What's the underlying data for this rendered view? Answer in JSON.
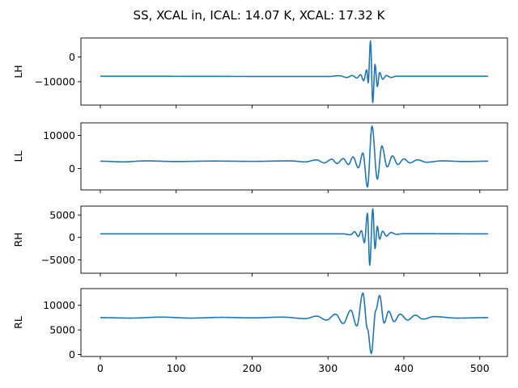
{
  "chart_data": {
    "type": "line",
    "title": "SS, XCAL in, ICAL: 14.07 K, XCAL: 17.32 K",
    "x_range": [
      0,
      511
    ],
    "xlim": [
      -25.5,
      536.5
    ],
    "xticks": [
      0,
      100,
      200,
      300,
      400,
      500
    ],
    "color": "#1f77b4",
    "sharex": true,
    "grid": false,
    "panels": [
      {
        "name": "LH",
        "ylabel": "LH",
        "ylim": [
          -19500,
          7700
        ],
        "yticks": [
          0,
          -10000
        ],
        "baseline": -7800,
        "features": [
          {
            "x": 300,
            "y": -7900
          },
          {
            "x": 315,
            "y": -7600
          },
          {
            "x": 325,
            "y": -8300
          },
          {
            "x": 332,
            "y": -7500
          },
          {
            "x": 338,
            "y": -8500
          },
          {
            "x": 343,
            "y": -7200
          },
          {
            "x": 347,
            "y": -9600
          },
          {
            "x": 351,
            "y": -5200
          },
          {
            "x": 353,
            "y": -10500
          },
          {
            "x": 356,
            "y": 6500
          },
          {
            "x": 359,
            "y": -18500
          },
          {
            "x": 362,
            "y": -3000
          },
          {
            "x": 365,
            "y": -12000
          },
          {
            "x": 368,
            "y": -6300
          },
          {
            "x": 372,
            "y": -9000
          },
          {
            "x": 377,
            "y": -7500
          },
          {
            "x": 383,
            "y": -8300
          },
          {
            "x": 390,
            "y": -7800
          },
          {
            "x": 511,
            "y": -7800
          }
        ]
      },
      {
        "name": "LL",
        "ylabel": "LL",
        "ylim": [
          -6500,
          13800
        ],
        "yticks": [
          0,
          10000
        ],
        "baseline": 2200,
        "features": [
          {
            "x": 0,
            "y": 2200
          },
          {
            "x": 30,
            "y": 2000
          },
          {
            "x": 60,
            "y": 2300
          },
          {
            "x": 100,
            "y": 2100
          },
          {
            "x": 150,
            "y": 2250
          },
          {
            "x": 200,
            "y": 2150
          },
          {
            "x": 250,
            "y": 2300
          },
          {
            "x": 270,
            "y": 2000
          },
          {
            "x": 285,
            "y": 2600
          },
          {
            "x": 295,
            "y": 1700
          },
          {
            "x": 305,
            "y": 2800
          },
          {
            "x": 312,
            "y": 1500
          },
          {
            "x": 320,
            "y": 3000
          },
          {
            "x": 327,
            "y": 1200
          },
          {
            "x": 333,
            "y": 3500
          },
          {
            "x": 340,
            "y": 200
          },
          {
            "x": 346,
            "y": 4700
          },
          {
            "x": 352,
            "y": -5600
          },
          {
            "x": 358,
            "y": 12800
          },
          {
            "x": 365,
            "y": -3200
          },
          {
            "x": 371,
            "y": 6800
          },
          {
            "x": 378,
            "y": 500
          },
          {
            "x": 385,
            "y": 3800
          },
          {
            "x": 392,
            "y": 1200
          },
          {
            "x": 400,
            "y": 2900
          },
          {
            "x": 408,
            "y": 1700
          },
          {
            "x": 418,
            "y": 2600
          },
          {
            "x": 430,
            "y": 1900
          },
          {
            "x": 450,
            "y": 2300
          },
          {
            "x": 480,
            "y": 2100
          },
          {
            "x": 511,
            "y": 2200
          }
        ]
      },
      {
        "name": "RH",
        "ylabel": "RH",
        "ylim": [
          -8000,
          7000
        ],
        "yticks": [
          5000,
          0,
          -5000
        ],
        "baseline": 800,
        "features": [
          {
            "x": 0,
            "y": 800
          },
          {
            "x": 320,
            "y": 800
          },
          {
            "x": 330,
            "y": 600
          },
          {
            "x": 335,
            "y": 1300
          },
          {
            "x": 340,
            "y": 200
          },
          {
            "x": 344,
            "y": 1500
          },
          {
            "x": 348,
            "y": -1200
          },
          {
            "x": 352,
            "y": 5400
          },
          {
            "x": 355,
            "y": -6200
          },
          {
            "x": 359,
            "y": 6400
          },
          {
            "x": 362,
            "y": -2500
          },
          {
            "x": 365,
            "y": 2500
          },
          {
            "x": 368,
            "y": -400
          },
          {
            "x": 372,
            "y": 1400
          },
          {
            "x": 377,
            "y": 300
          },
          {
            "x": 383,
            "y": 1100
          },
          {
            "x": 390,
            "y": 700
          },
          {
            "x": 400,
            "y": 850
          },
          {
            "x": 511,
            "y": 800
          }
        ]
      },
      {
        "name": "RL",
        "ylabel": "RL",
        "ylim": [
          -400,
          13400
        ],
        "yticks": [
          10000,
          5000,
          0
        ],
        "baseline": 7500,
        "features": [
          {
            "x": 0,
            "y": 7500
          },
          {
            "x": 40,
            "y": 7400
          },
          {
            "x": 80,
            "y": 7600
          },
          {
            "x": 120,
            "y": 7400
          },
          {
            "x": 160,
            "y": 7550
          },
          {
            "x": 200,
            "y": 7450
          },
          {
            "x": 240,
            "y": 7600
          },
          {
            "x": 270,
            "y": 7300
          },
          {
            "x": 285,
            "y": 7800
          },
          {
            "x": 298,
            "y": 7000
          },
          {
            "x": 310,
            "y": 8200
          },
          {
            "x": 320,
            "y": 6300
          },
          {
            "x": 330,
            "y": 9000
          },
          {
            "x": 338,
            "y": 5800
          },
          {
            "x": 346,
            "y": 12500
          },
          {
            "x": 352,
            "y": 5200
          },
          {
            "x": 357,
            "y": 200
          },
          {
            "x": 363,
            "y": 9000
          },
          {
            "x": 368,
            "y": 12000
          },
          {
            "x": 374,
            "y": 6400
          },
          {
            "x": 380,
            "y": 8800
          },
          {
            "x": 387,
            "y": 6700
          },
          {
            "x": 395,
            "y": 8200
          },
          {
            "x": 405,
            "y": 7000
          },
          {
            "x": 415,
            "y": 8000
          },
          {
            "x": 425,
            "y": 7200
          },
          {
            "x": 440,
            "y": 7700
          },
          {
            "x": 470,
            "y": 7400
          },
          {
            "x": 511,
            "y": 7500
          }
        ]
      }
    ]
  }
}
